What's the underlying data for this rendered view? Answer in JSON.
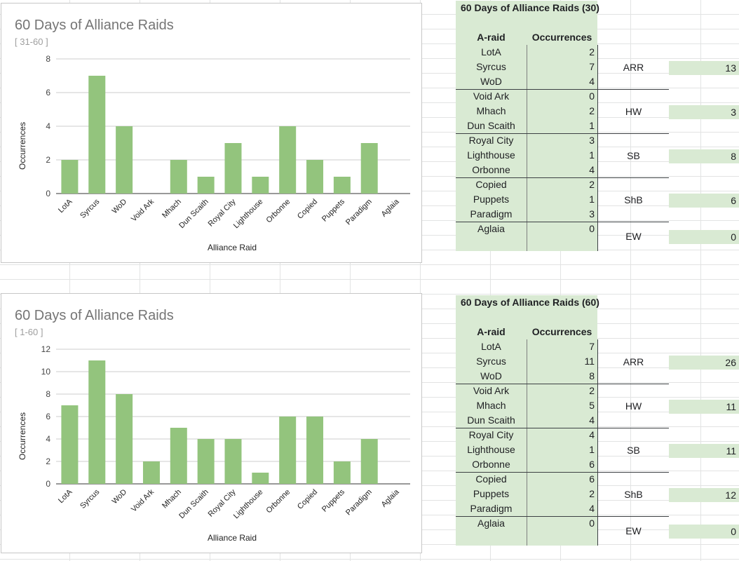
{
  "chart_data": [
    {
      "type": "bar",
      "title": "60 Days of Alliance Raids",
      "subtitle": "[ 31-60 ]",
      "xlabel": "Alliance Raid",
      "ylabel": "Occurrences",
      "ylim": [
        0,
        8
      ],
      "yticks": [
        "0",
        "2",
        "4",
        "6",
        "8"
      ],
      "categories": [
        "LotA",
        "Syrcus",
        "WoD",
        "Void Ark",
        "Mhach",
        "Dun Scaith",
        "Royal City",
        "Lighthouse",
        "Orbonne",
        "Copied",
        "Puppets",
        "Paradigm",
        "Aglaia"
      ],
      "values": [
        2,
        7,
        4,
        0,
        2,
        1,
        3,
        1,
        4,
        2,
        1,
        3,
        0
      ],
      "color": "#93c47d",
      "grid": true,
      "legend": "none"
    },
    {
      "type": "bar",
      "title": "60 Days of Alliance Raids",
      "subtitle": "[ 1-60 ]",
      "xlabel": "Alliance Raid",
      "ylabel": "Occurrences",
      "ylim": [
        0,
        12
      ],
      "yticks": [
        "0",
        "2",
        "4",
        "6",
        "8",
        "10",
        "12"
      ],
      "categories": [
        "LotA",
        "Syrcus",
        "WoD",
        "Void Ark",
        "Mhach",
        "Dun Scaith",
        "Royal City",
        "Lighthouse",
        "Orbonne",
        "Copied",
        "Puppets",
        "Paradigm",
        "Aglaia"
      ],
      "values": [
        7,
        11,
        8,
        2,
        5,
        4,
        4,
        1,
        6,
        6,
        2,
        4,
        0
      ],
      "color": "#93c47d",
      "grid": true,
      "legend": "none"
    }
  ],
  "tables": [
    {
      "title": "60 Days of Alliance Raids (30)",
      "col_name": "A-raid",
      "col_occ": "Occurrences",
      "rows": [
        {
          "name": "LotA",
          "occ": "2"
        },
        {
          "name": "Syrcus",
          "occ": "7"
        },
        {
          "name": "WoD",
          "occ": "4"
        },
        {
          "name": "Void Ark",
          "occ": "0"
        },
        {
          "name": "Mhach",
          "occ": "2"
        },
        {
          "name": "Dun Scaith",
          "occ": "1"
        },
        {
          "name": "Royal City",
          "occ": "3"
        },
        {
          "name": "Lighthouse",
          "occ": "1"
        },
        {
          "name": "Orbonne",
          "occ": "4"
        },
        {
          "name": "Copied",
          "occ": "2"
        },
        {
          "name": "Puppets",
          "occ": "1"
        },
        {
          "name": "Paradigm",
          "occ": "3"
        },
        {
          "name": "Aglaia",
          "occ": "0"
        },
        {
          "name": "",
          "occ": ""
        }
      ],
      "expansions": [
        {
          "name": "ARR",
          "total": "13"
        },
        {
          "name": "HW",
          "total": "3"
        },
        {
          "name": "SB",
          "total": "8"
        },
        {
          "name": "ShB",
          "total": "6"
        },
        {
          "name": "EW",
          "total": "0"
        }
      ]
    },
    {
      "title": "60 Days of Alliance Raids (60)",
      "col_name": "A-raid",
      "col_occ": "Occurrences",
      "rows": [
        {
          "name": "LotA",
          "occ": "7"
        },
        {
          "name": "Syrcus",
          "occ": "11"
        },
        {
          "name": "WoD",
          "occ": "8"
        },
        {
          "name": "Void Ark",
          "occ": "2"
        },
        {
          "name": "Mhach",
          "occ": "5"
        },
        {
          "name": "Dun Scaith",
          "occ": "4"
        },
        {
          "name": "Royal City",
          "occ": "4"
        },
        {
          "name": "Lighthouse",
          "occ": "1"
        },
        {
          "name": "Orbonne",
          "occ": "6"
        },
        {
          "name": "Copied",
          "occ": "6"
        },
        {
          "name": "Puppets",
          "occ": "2"
        },
        {
          "name": "Paradigm",
          "occ": "4"
        },
        {
          "name": "Aglaia",
          "occ": "0"
        },
        {
          "name": "",
          "occ": ""
        }
      ],
      "expansions": [
        {
          "name": "ARR",
          "total": "26"
        },
        {
          "name": "HW",
          "total": "11"
        },
        {
          "name": "SB",
          "total": "11"
        },
        {
          "name": "ShB",
          "total": "12"
        },
        {
          "name": "EW",
          "total": "0"
        }
      ]
    }
  ]
}
